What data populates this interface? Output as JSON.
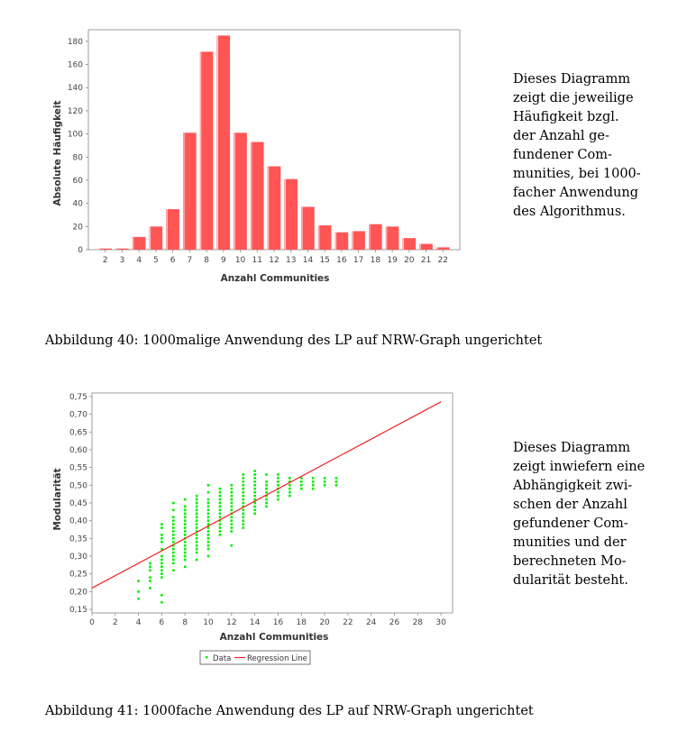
{
  "chart_data": [
    {
      "type": "bar",
      "categories": [
        "2",
        "3",
        "4",
        "5",
        "6",
        "7",
        "8",
        "9",
        "10",
        "11",
        "12",
        "13",
        "14",
        "15",
        "16",
        "17",
        "18",
        "19",
        "20",
        "21",
        "22"
      ],
      "values": [
        1,
        1,
        11,
        20,
        35,
        101,
        171,
        185,
        101,
        93,
        72,
        61,
        37,
        21,
        15,
        16,
        22,
        20,
        10,
        5,
        2
      ],
      "xlabel": "Anzahl Communities",
      "ylabel": "Absolute Häufigkeit",
      "ylim": [
        0,
        190
      ],
      "yticks": [
        0,
        20,
        40,
        60,
        80,
        100,
        120,
        140,
        160,
        180
      ],
      "color": "#ff5555",
      "grid": false,
      "legend": "none"
    },
    {
      "type": "scatter",
      "xlabel": "Anzahl Communities",
      "ylabel": "Modularität",
      "xlim": [
        0,
        31
      ],
      "ylim": [
        0.14,
        0.76
      ],
      "xticks": [
        0,
        2,
        4,
        6,
        8,
        10,
        12,
        14,
        16,
        18,
        20,
        22,
        24,
        26,
        28,
        30
      ],
      "yticks": [
        "0,15",
        "0,20",
        "0,25",
        "0,30",
        "0,35",
        "0,40",
        "0,45",
        "0,50",
        "0,55",
        "0,60",
        "0,65",
        "0,70",
        "0,75"
      ],
      "series": [
        {
          "name": "Data",
          "color": "#00ee00",
          "columns": [
            {
              "x": 4,
              "y": [
                0.18,
                0.2,
                0.23
              ]
            },
            {
              "x": 5,
              "y": [
                0.21,
                0.23,
                0.24,
                0.26,
                0.27,
                0.28
              ]
            },
            {
              "x": 6,
              "y": [
                0.17,
                0.19,
                0.24,
                0.25,
                0.26,
                0.27,
                0.28,
                0.29,
                0.3,
                0.32,
                0.34,
                0.35,
                0.36,
                0.38,
                0.39
              ]
            },
            {
              "x": 7,
              "y": [
                0.26,
                0.28,
                0.29,
                0.3,
                0.31,
                0.32,
                0.33,
                0.34,
                0.35,
                0.36,
                0.37,
                0.38,
                0.39,
                0.4,
                0.41,
                0.43,
                0.45
              ]
            },
            {
              "x": 8,
              "y": [
                0.27,
                0.29,
                0.3,
                0.31,
                0.32,
                0.33,
                0.34,
                0.35,
                0.36,
                0.37,
                0.38,
                0.39,
                0.4,
                0.41,
                0.42,
                0.43,
                0.44,
                0.46
              ]
            },
            {
              "x": 9,
              "y": [
                0.29,
                0.31,
                0.32,
                0.33,
                0.34,
                0.35,
                0.36,
                0.37,
                0.38,
                0.39,
                0.4,
                0.41,
                0.42,
                0.43,
                0.44,
                0.45,
                0.46,
                0.47
              ]
            },
            {
              "x": 10,
              "y": [
                0.3,
                0.32,
                0.33,
                0.34,
                0.35,
                0.36,
                0.37,
                0.38,
                0.39,
                0.4,
                0.41,
                0.42,
                0.43,
                0.44,
                0.45,
                0.46,
                0.48,
                0.5
              ]
            },
            {
              "x": 11,
              "y": [
                0.36,
                0.37,
                0.38,
                0.39,
                0.4,
                0.41,
                0.42,
                0.43,
                0.44,
                0.45,
                0.46,
                0.47,
                0.48,
                0.49
              ]
            },
            {
              "x": 12,
              "y": [
                0.33,
                0.37,
                0.38,
                0.39,
                0.4,
                0.41,
                0.42,
                0.43,
                0.44,
                0.45,
                0.46,
                0.47,
                0.48,
                0.49,
                0.5
              ]
            },
            {
              "x": 13,
              "y": [
                0.38,
                0.39,
                0.4,
                0.41,
                0.42,
                0.43,
                0.44,
                0.45,
                0.46,
                0.47,
                0.48,
                0.49,
                0.5,
                0.51,
                0.52,
                0.53
              ]
            },
            {
              "x": 14,
              "y": [
                0.42,
                0.43,
                0.44,
                0.45,
                0.46,
                0.47,
                0.48,
                0.49,
                0.5,
                0.51,
                0.52,
                0.53,
                0.54
              ]
            },
            {
              "x": 15,
              "y": [
                0.44,
                0.45,
                0.46,
                0.47,
                0.48,
                0.49,
                0.5,
                0.51,
                0.53
              ]
            },
            {
              "x": 16,
              "y": [
                0.46,
                0.47,
                0.48,
                0.49,
                0.5,
                0.51,
                0.52,
                0.53
              ]
            },
            {
              "x": 17,
              "y": [
                0.47,
                0.48,
                0.49,
                0.5,
                0.51,
                0.52
              ]
            },
            {
              "x": 18,
              "y": [
                0.49,
                0.5,
                0.51,
                0.52
              ]
            },
            {
              "x": 19,
              "y": [
                0.49,
                0.5,
                0.51,
                0.52
              ]
            },
            {
              "x": 20,
              "y": [
                0.5,
                0.51,
                0.52
              ]
            },
            {
              "x": 21,
              "y": [
                0.5,
                0.51,
                0.52
              ]
            }
          ]
        },
        {
          "name": "Regression Line",
          "color": "#ee2222",
          "line": [
            [
              0,
              0.21
            ],
            [
              30,
              0.735
            ]
          ]
        }
      ],
      "legend": "bottom"
    }
  ],
  "text1": {
    "lines": [
      "Dieses Diagramm",
      "zeigt die jeweilige",
      "Häufigkeit bzgl.",
      "der Anzahl ge-",
      "fundener Com-",
      "munities, bei 1000-",
      "facher Anwendung",
      "des Algorithmus."
    ]
  },
  "caption1": "Abbildung 40: 1000malige Anwendung des LP auf NRW-Graph ungerichtet",
  "text2": {
    "lines": [
      "Dieses Diagramm",
      "zeigt inwiefern eine",
      "Abhängigkeit zwi-",
      "schen der Anzahl",
      "gefundener Com-",
      "munities und der",
      "berechneten Mo-",
      "dularität besteht."
    ]
  },
  "caption2": "Abbildung 41: 1000fache Anwendung des LP auf NRW-Graph ungerichtet"
}
